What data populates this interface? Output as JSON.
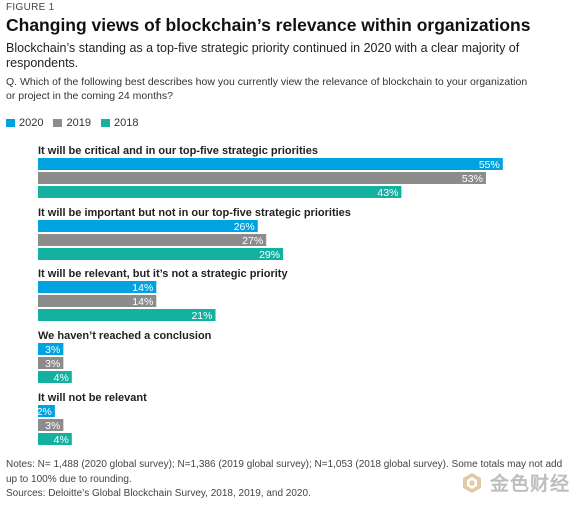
{
  "figure_label": "FIGURE 1",
  "watermark": {
    "text": "金色财经",
    "icon": "gold-finance-logo-icon"
  },
  "chart_data": {
    "type": "bar",
    "orientation": "horizontal",
    "title": "Changing views of blockchain’s relevance within organizations",
    "subtitle": "Blockchain’s standing as a top-five strategic priority continued in 2020 with a clear majority of respondents.",
    "question": "Q. Which of the following best describes how you currently view the relevance of blockchain to your organization or project in the coming 24 months?",
    "legend_position": "top-left",
    "grid": false,
    "value_suffix": "%",
    "xlim": [
      0,
      62
    ],
    "categories": [
      "It will be critical and in our top-five strategic priorities",
      "It will be important but not in our top-five strategic priorities",
      "It will be relevant, but it’s not a strategic priority",
      "We haven’t reached a conclusion",
      "It will not be relevant"
    ],
    "series": [
      {
        "name": "2020",
        "color": "#00a3e0",
        "values": [
          55,
          26,
          14,
          3,
          2
        ]
      },
      {
        "name": "2019",
        "color": "#8c8c8c",
        "values": [
          53,
          27,
          14,
          3,
          3
        ]
      },
      {
        "name": "2018",
        "color": "#14b0a0",
        "values": [
          43,
          29,
          21,
          4,
          4
        ]
      }
    ]
  },
  "notes": "Notes: N= 1,488 (2020 global survey); N=1,386 (2019 global survey); N=1,053 (2018 global survey). Some totals may not add up to 100% due to rounding.",
  "sources": "Sources: Deloitte’s Global Blockchain Survey, 2018, 2019, and 2020."
}
